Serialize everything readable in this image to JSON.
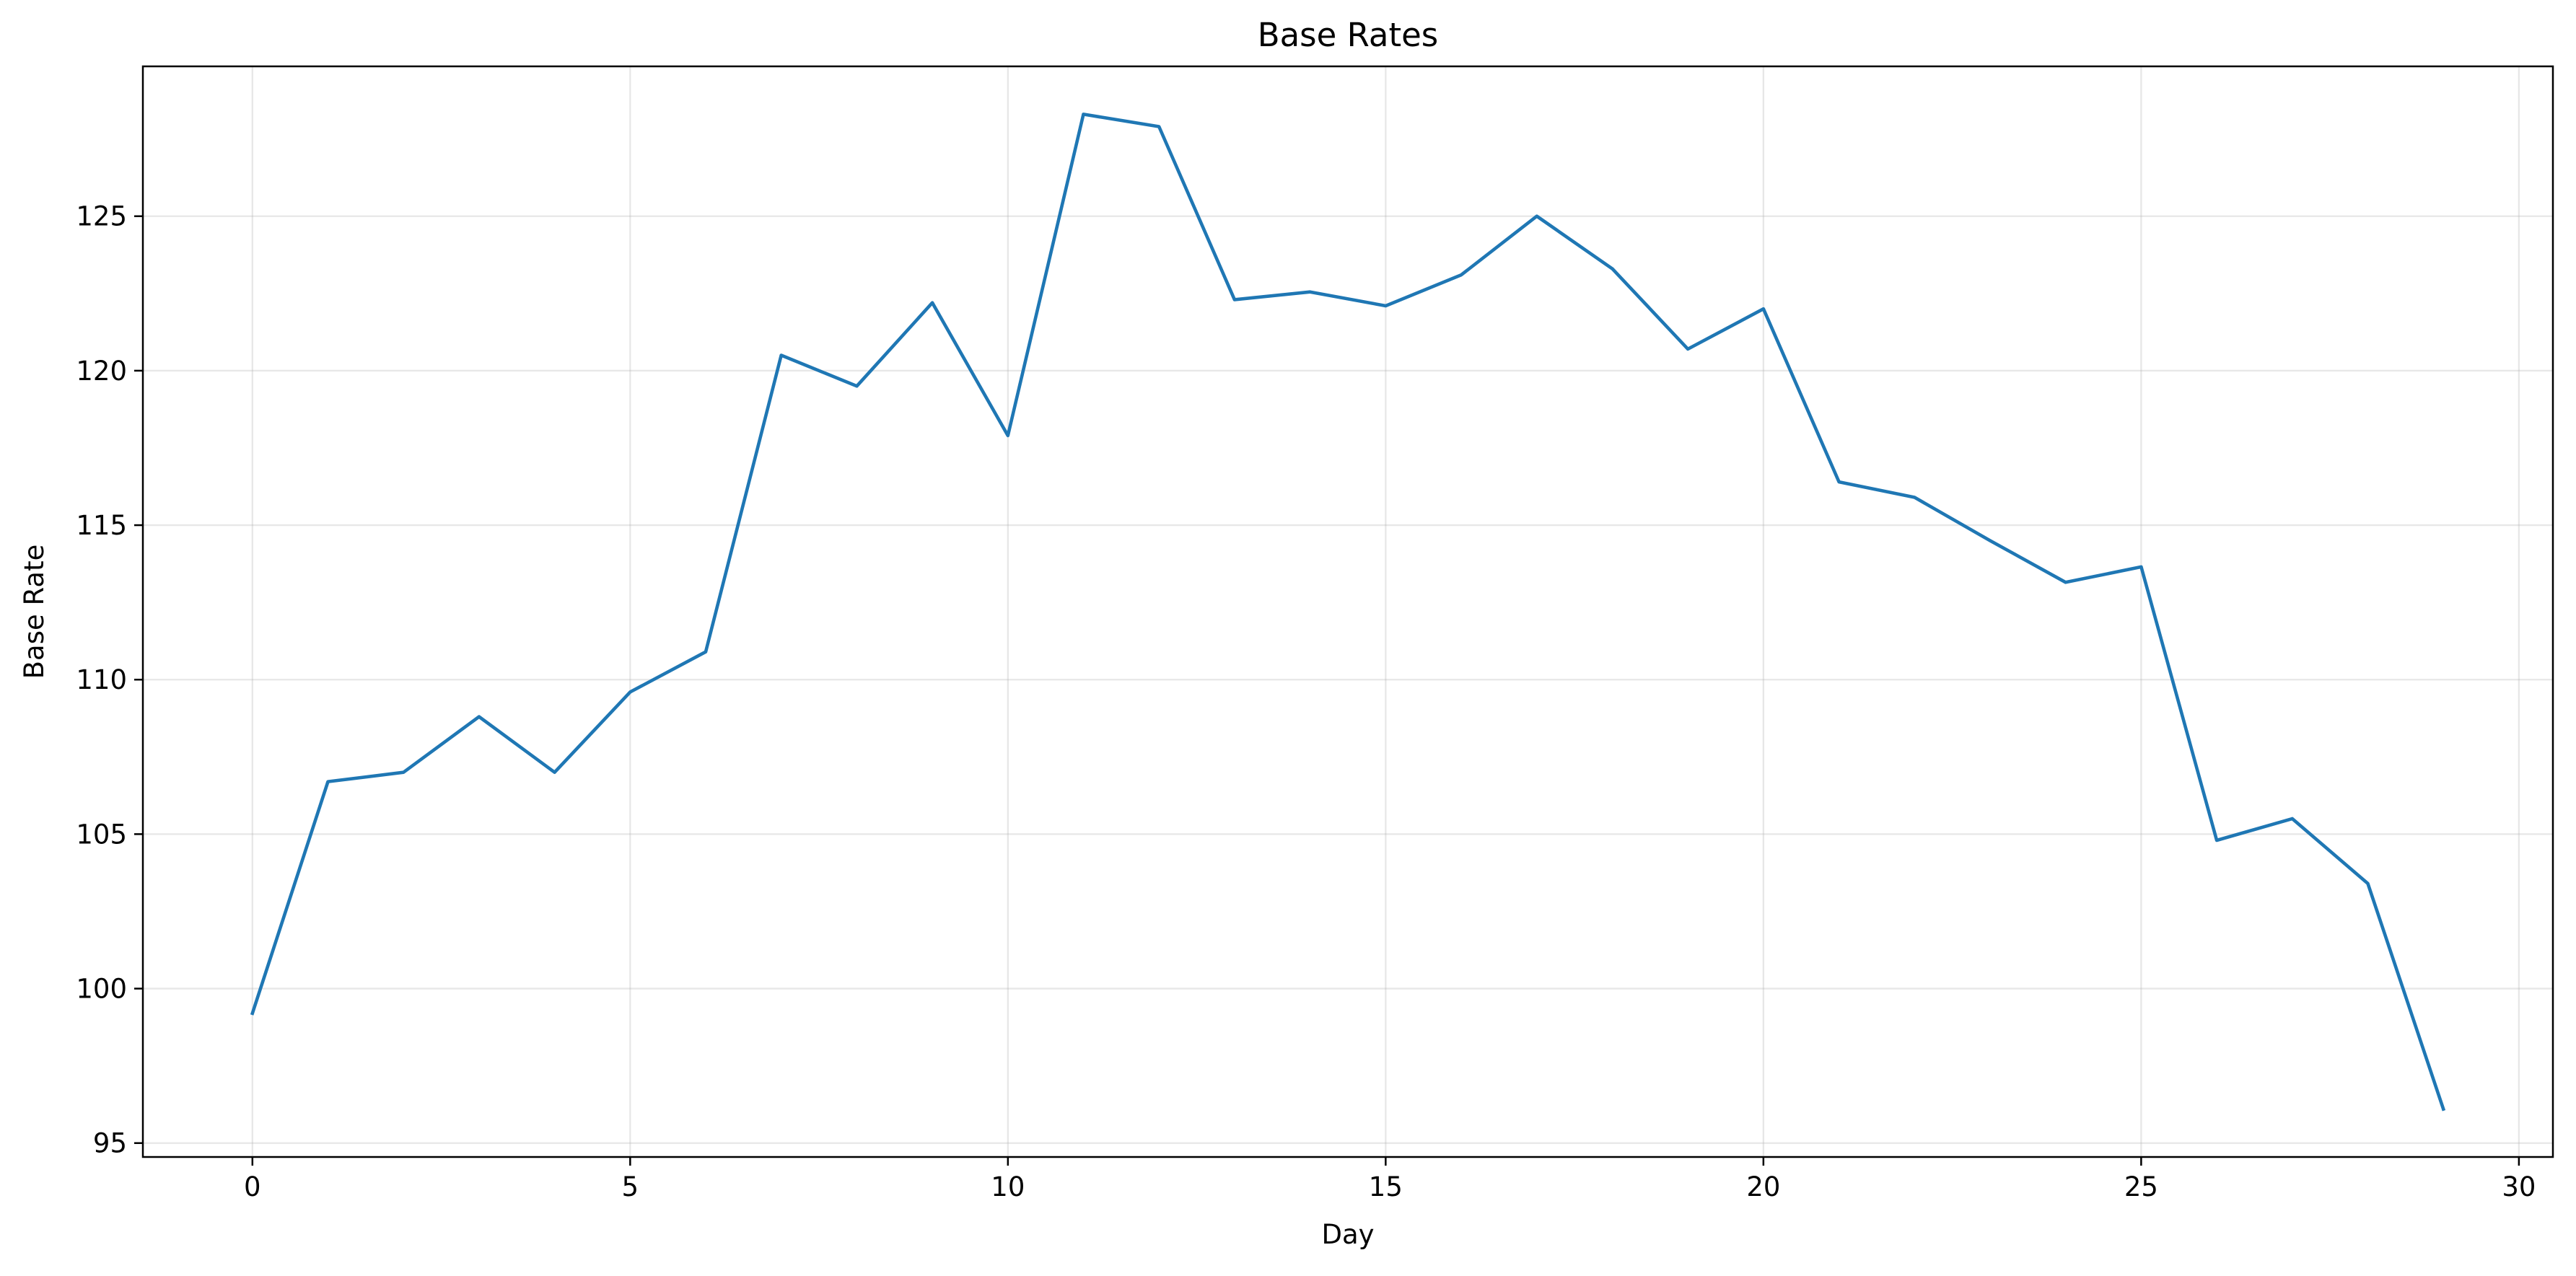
{
  "chart_data": {
    "type": "line",
    "title": "Base Rates",
    "xlabel": "Day",
    "ylabel": "Base Rate",
    "xlim": [
      -1.45,
      30.45
    ],
    "ylim": [
      94.55,
      129.85
    ],
    "xticks": [
      0,
      5,
      10,
      15,
      20,
      25,
      30
    ],
    "yticks": [
      95,
      100,
      105,
      110,
      115,
      120,
      125
    ],
    "grid": true,
    "legend": "none",
    "x": [
      0,
      1,
      2,
      3,
      4,
      5,
      6,
      7,
      8,
      9,
      10,
      11,
      12,
      13,
      14,
      15,
      16,
      17,
      18,
      19,
      20,
      21,
      22,
      23,
      24,
      25,
      26,
      27,
      28,
      29
    ],
    "series": [
      {
        "color": "#1f77b4",
        "values": [
          99.2,
          106.7,
          107.0,
          108.8,
          107.0,
          109.6,
          110.9,
          120.5,
          119.5,
          122.2,
          117.9,
          128.3,
          127.9,
          122.3,
          122.55,
          122.1,
          123.1,
          125.0,
          123.3,
          120.7,
          122.0,
          116.4,
          115.9,
          114.5,
          113.15,
          113.65,
          104.8,
          105.5,
          103.4,
          96.1
        ]
      }
    ]
  }
}
